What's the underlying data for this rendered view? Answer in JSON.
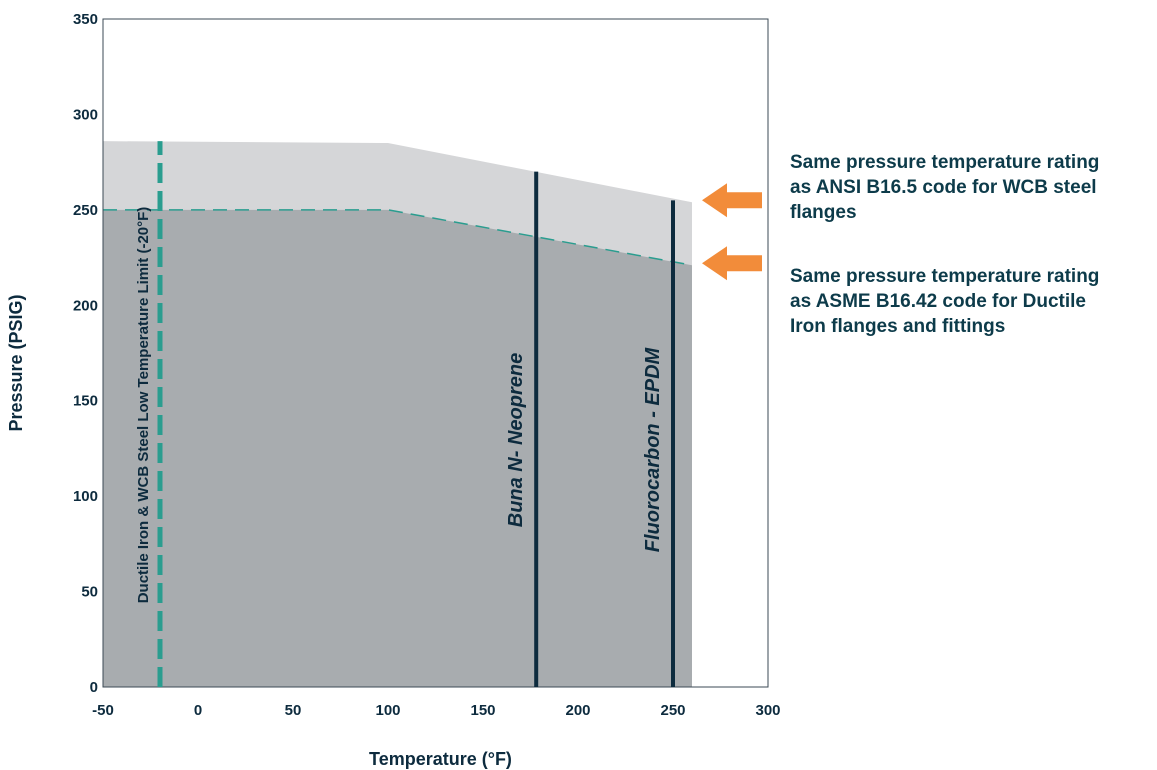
{
  "chart_data": {
    "type": "area",
    "xlabel": "Temperature (°F)",
    "ylabel": "Pressure (PSIG)",
    "xlim": [
      -50,
      300
    ],
    "ylim": [
      0,
      350
    ],
    "xticks": [
      -50,
      0,
      50,
      100,
      150,
      200,
      250,
      300
    ],
    "yticks": [
      0,
      50,
      100,
      150,
      200,
      250,
      300,
      350
    ],
    "series": [
      {
        "x": [
          -50,
          100,
          260
        ],
        "y": [
          286,
          285,
          254
        ],
        "fill": "#d5d6d8"
      },
      {
        "x": [
          -50,
          100,
          260
        ],
        "y": [
          250,
          250,
          221
        ],
        "fill": "#a8acaf",
        "line_color": "#2a9d8f",
        "line_style": "dashed"
      }
    ],
    "vlines": [
      {
        "x": -20,
        "y_top": 286,
        "label": "Ductile Iron & WCB Steel Low Temperature Limit (-20°F)",
        "color": "#2a9d8f",
        "style": "dashed",
        "label_italic": false
      },
      {
        "x": 178,
        "y_top": 270,
        "label": "Buna N- Neoprene",
        "color": "#0d2b3e",
        "style": "solid",
        "label_italic": true
      },
      {
        "x": 250,
        "y_top": 255,
        "label": "Fluorocarbon - EPDM",
        "color": "#0d2b3e",
        "style": "solid",
        "label_italic": true
      }
    ],
    "annotations": [
      {
        "lines": [
          "Same pressure temperature rating",
          "as ANSI B16.5 code for WCB steel",
          "flanges"
        ],
        "points_to_y": 254,
        "arrow_color": "#f28c3a"
      },
      {
        "lines": [
          "Same pressure temperature rating",
          "as ASME B16.42 code for Ductile",
          "Iron flanges and fittings"
        ],
        "points_to_y": 221,
        "arrow_color": "#f28c3a"
      }
    ],
    "grid": false,
    "legend": "none"
  }
}
